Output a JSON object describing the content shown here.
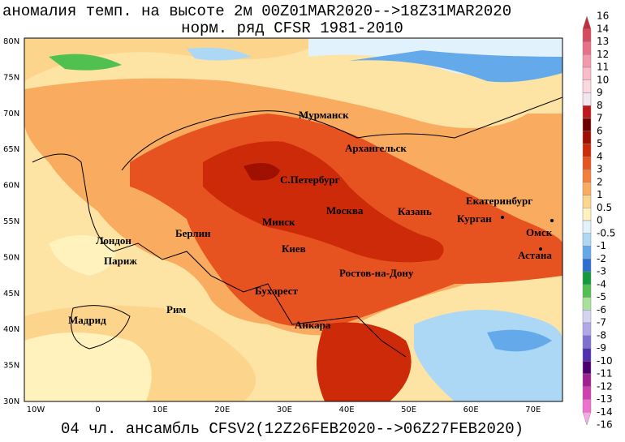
{
  "header": {
    "title": "аномалия темп. на высоте 2м 00Z01MAR2020-->18Z31MAR2020",
    "subtitle": "норм. ряд CFSR 1981-2010"
  },
  "footer": "04 чл. ансамбль CFSV2(12Z26FEB2020-->06Z27FEB2020)",
  "lat_labels": [
    "80N",
    "75N",
    "70N",
    "65N",
    "60N",
    "55N",
    "50N",
    "45N",
    "40N",
    "35N",
    "30N"
  ],
  "lon_labels": [
    "10W",
    "0",
    "10E",
    "20E",
    "30E",
    "40E",
    "50E",
    "60E",
    "70E"
  ],
  "cities": [
    "Мурманск",
    "Архангельск",
    "С.Петербург",
    "Екатеринбург",
    "Москва",
    "Казань",
    "Курган",
    "Минск",
    "Омск",
    "Берлин",
    "Лондон",
    "Киев",
    "Астана",
    "Париж",
    "Ростов-на-Дону",
    "Бухарест",
    "Рим",
    "Мадрид",
    "Анкара"
  ],
  "colorbar": {
    "labels": [
      16,
      14,
      13,
      12,
      11,
      10,
      9,
      8,
      7,
      6,
      5,
      4,
      3,
      2,
      1,
      0.5,
      0,
      -0.5,
      -1,
      -2,
      -3,
      -4,
      -5,
      -6,
      -7,
      -8,
      -9,
      -10,
      -11,
      -12,
      -13,
      -14,
      -16
    ],
    "colors": [
      "#c0303c",
      "#d84a60",
      "#e87088",
      "#f498ac",
      "#f8bcc8",
      "#fbd8de",
      "#f4e4ee",
      "#c01818",
      "#700000",
      "#a01000",
      "#cc2a08",
      "#e65220",
      "#f47e3c",
      "#f9ac60",
      "#fcd48c",
      "#fff2bc",
      "#e2f2fc",
      "#acd8f6",
      "#64aaea",
      "#2e6ed0",
      "#129a3c",
      "#50c050",
      "#a6e29a",
      "#d4d4f2",
      "#b0a8e8",
      "#8070d0",
      "#5030b0",
      "#4c0070",
      "#a02090",
      "#d040b0",
      "#f070d0",
      "#f8a8e8"
    ]
  }
}
